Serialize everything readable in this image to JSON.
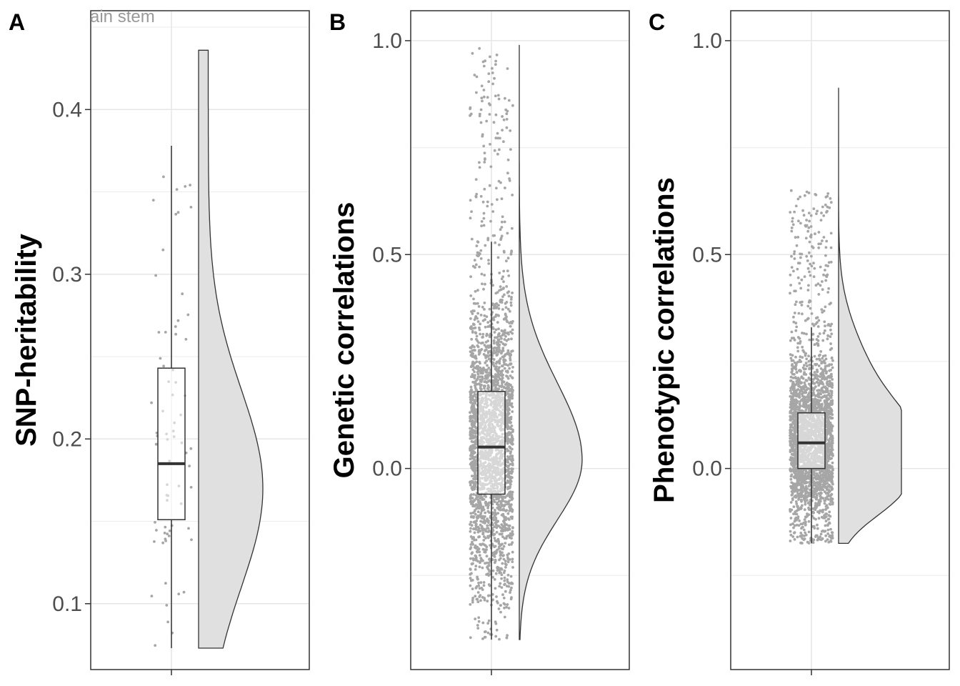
{
  "chart_data": [
    {
      "type": "raincloud",
      "panel_label": "A",
      "ylabel": "SNP-heritability",
      "xlabel": "",
      "strip_text": "ain stem",
      "ylim": [
        0.06,
        0.46
      ],
      "yticks": [
        0.1,
        0.2,
        0.3,
        0.4
      ],
      "ytick_labels": [
        "0.1",
        "0.2",
        "0.3",
        "0.4"
      ],
      "boxplot": {
        "lower_whisker": 0.073,
        "q1": 0.151,
        "median": 0.185,
        "q3": 0.243,
        "upper_whisker": 0.378
      },
      "data_range": [
        0.073,
        0.436
      ],
      "density_peak": 0.17,
      "n_points": 70,
      "point_color": "#a6a6a6",
      "fill_color": "#e0e0e0"
    },
    {
      "type": "raincloud",
      "panel_label": "B",
      "ylabel": "Genetic correlations",
      "xlabel": "",
      "ylim": [
        -0.47,
        1.07
      ],
      "yticks": [
        0.0,
        0.5,
        1.0
      ],
      "ytick_labels": [
        "0.0",
        "0.5",
        "1.0"
      ],
      "boxplot": {
        "lower_whisker": -0.4,
        "q1": -0.06,
        "median": 0.05,
        "q3": 0.18,
        "upper_whisker": 0.53
      },
      "data_range": [
        -0.4,
        0.99
      ],
      "density_peak": 0.02,
      "n_points": 2600,
      "point_color": "#a6a6a6",
      "fill_color": "#e0e0e0"
    },
    {
      "type": "raincloud",
      "panel_label": "C",
      "ylabel": "Phenotypic correlations",
      "xlabel": "",
      "ylim": [
        -0.47,
        1.07
      ],
      "yticks": [
        0.0,
        0.5,
        1.0
      ],
      "ytick_labels": [
        "0.0",
        "0.5",
        "1.0"
      ],
      "boxplot": {
        "lower_whisker": -0.175,
        "q1": 0.0,
        "median": 0.06,
        "q3": 0.13,
        "upper_whisker": 0.33
      },
      "data_range": [
        -0.175,
        0.89
      ],
      "density_peak": 0.05,
      "n_points": 2600,
      "point_color": "#a6a6a6",
      "fill_color": "#e0e0e0"
    }
  ]
}
